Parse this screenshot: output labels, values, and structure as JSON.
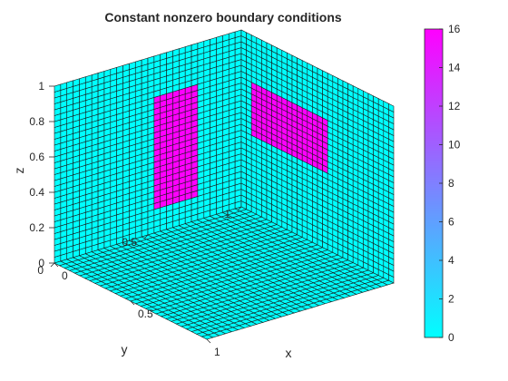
{
  "chart_data": {
    "type": "surface3d",
    "title": "Constant nonzero boundary conditions",
    "xlabel": "x",
    "ylabel": "y",
    "zlabel": "z",
    "xlim": [
      0,
      1
    ],
    "ylim": [
      0,
      1
    ],
    "zlim": [
      0,
      1
    ],
    "x_ticks": [
      "0",
      "0.5",
      "1"
    ],
    "y_ticks": [
      "0",
      "0.5",
      "1"
    ],
    "z_ticks": [
      "0",
      "0.2",
      "0.4",
      "0.6",
      "0.8",
      "1"
    ],
    "mesh_divisions": 30,
    "base_value": 0,
    "patches": [
      {
        "face": "back-left (x = 0 plane)",
        "y_range": [
          0.53,
          0.77
        ],
        "z_range": [
          0.13,
          0.77
        ],
        "value": 16
      },
      {
        "face": "back-right (y = 1 plane)",
        "x_range": [
          0.07,
          0.57
        ],
        "z_range": [
          0.43,
          0.73
        ],
        "value": 16
      }
    ],
    "colorbar": {
      "limits": [
        0,
        16
      ],
      "ticks": [
        "0",
        "2",
        "4",
        "6",
        "8",
        "10",
        "12",
        "14",
        "16"
      ],
      "colors": [
        "#00ffff",
        "#ff00ff"
      ]
    },
    "grid": false
  }
}
